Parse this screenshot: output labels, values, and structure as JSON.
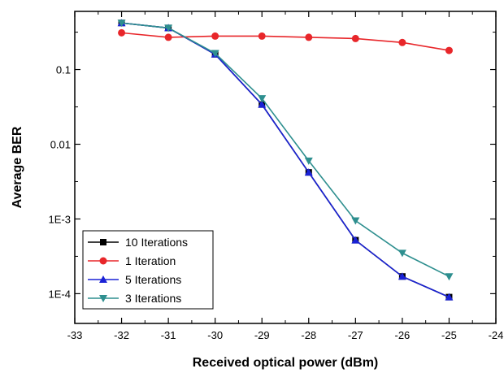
{
  "chart_data": {
    "type": "line",
    "xlabel": "Received optical power (dBm)",
    "ylabel": "Average BER",
    "xlim": [
      -33,
      -24
    ],
    "ylim": [
      4e-05,
      0.6
    ],
    "yscale": "log",
    "grid": false,
    "legend_position": "bottom-left",
    "x_ticks": [
      -33,
      -32,
      -31,
      -30,
      -29,
      -28,
      -27,
      -26,
      -25,
      -24
    ],
    "x_tick_labels": [
      "-33",
      "-32",
      "-31",
      "-30",
      "-29",
      "-28",
      "-27",
      "-26",
      "-25",
      "-24"
    ],
    "y_ticks": [
      0.1,
      0.01,
      0.001,
      0.0001
    ],
    "y_tick_labels": [
      "0.1",
      "0.01",
      "1E-3",
      "1E-4"
    ],
    "series": [
      {
        "name": "10 Iterations",
        "color": "#000000",
        "marker": "square",
        "x": [
          -32,
          -31,
          -30,
          -29,
          -28,
          -27,
          -26,
          -25
        ],
        "values": [
          0.42,
          0.36,
          0.16,
          0.034,
          0.0042,
          0.00052,
          0.00017,
          9e-05
        ]
      },
      {
        "name": "1 Iteration",
        "color": "#e8262a",
        "marker": "circle",
        "x": [
          -32,
          -31,
          -30,
          -29,
          -28,
          -27,
          -26,
          -25
        ],
        "values": [
          0.31,
          0.27,
          0.28,
          0.28,
          0.27,
          0.26,
          0.23,
          0.18
        ]
      },
      {
        "name": "5 Iterations",
        "color": "#1a22d6",
        "marker": "triangle-up",
        "x": [
          -32,
          -31,
          -30,
          -29,
          -28,
          -27,
          -26,
          -25
        ],
        "values": [
          0.42,
          0.36,
          0.16,
          0.034,
          0.0042,
          0.00052,
          0.00017,
          9e-05
        ]
      },
      {
        "name": "3 Iterations",
        "color": "#2e8f8f",
        "marker": "triangle-down",
        "x": [
          -32,
          -31,
          -30,
          -29,
          -28,
          -27,
          -26,
          -25
        ],
        "values": [
          0.42,
          0.36,
          0.165,
          0.041,
          0.006,
          0.00095,
          0.00035,
          0.00017
        ]
      }
    ]
  }
}
